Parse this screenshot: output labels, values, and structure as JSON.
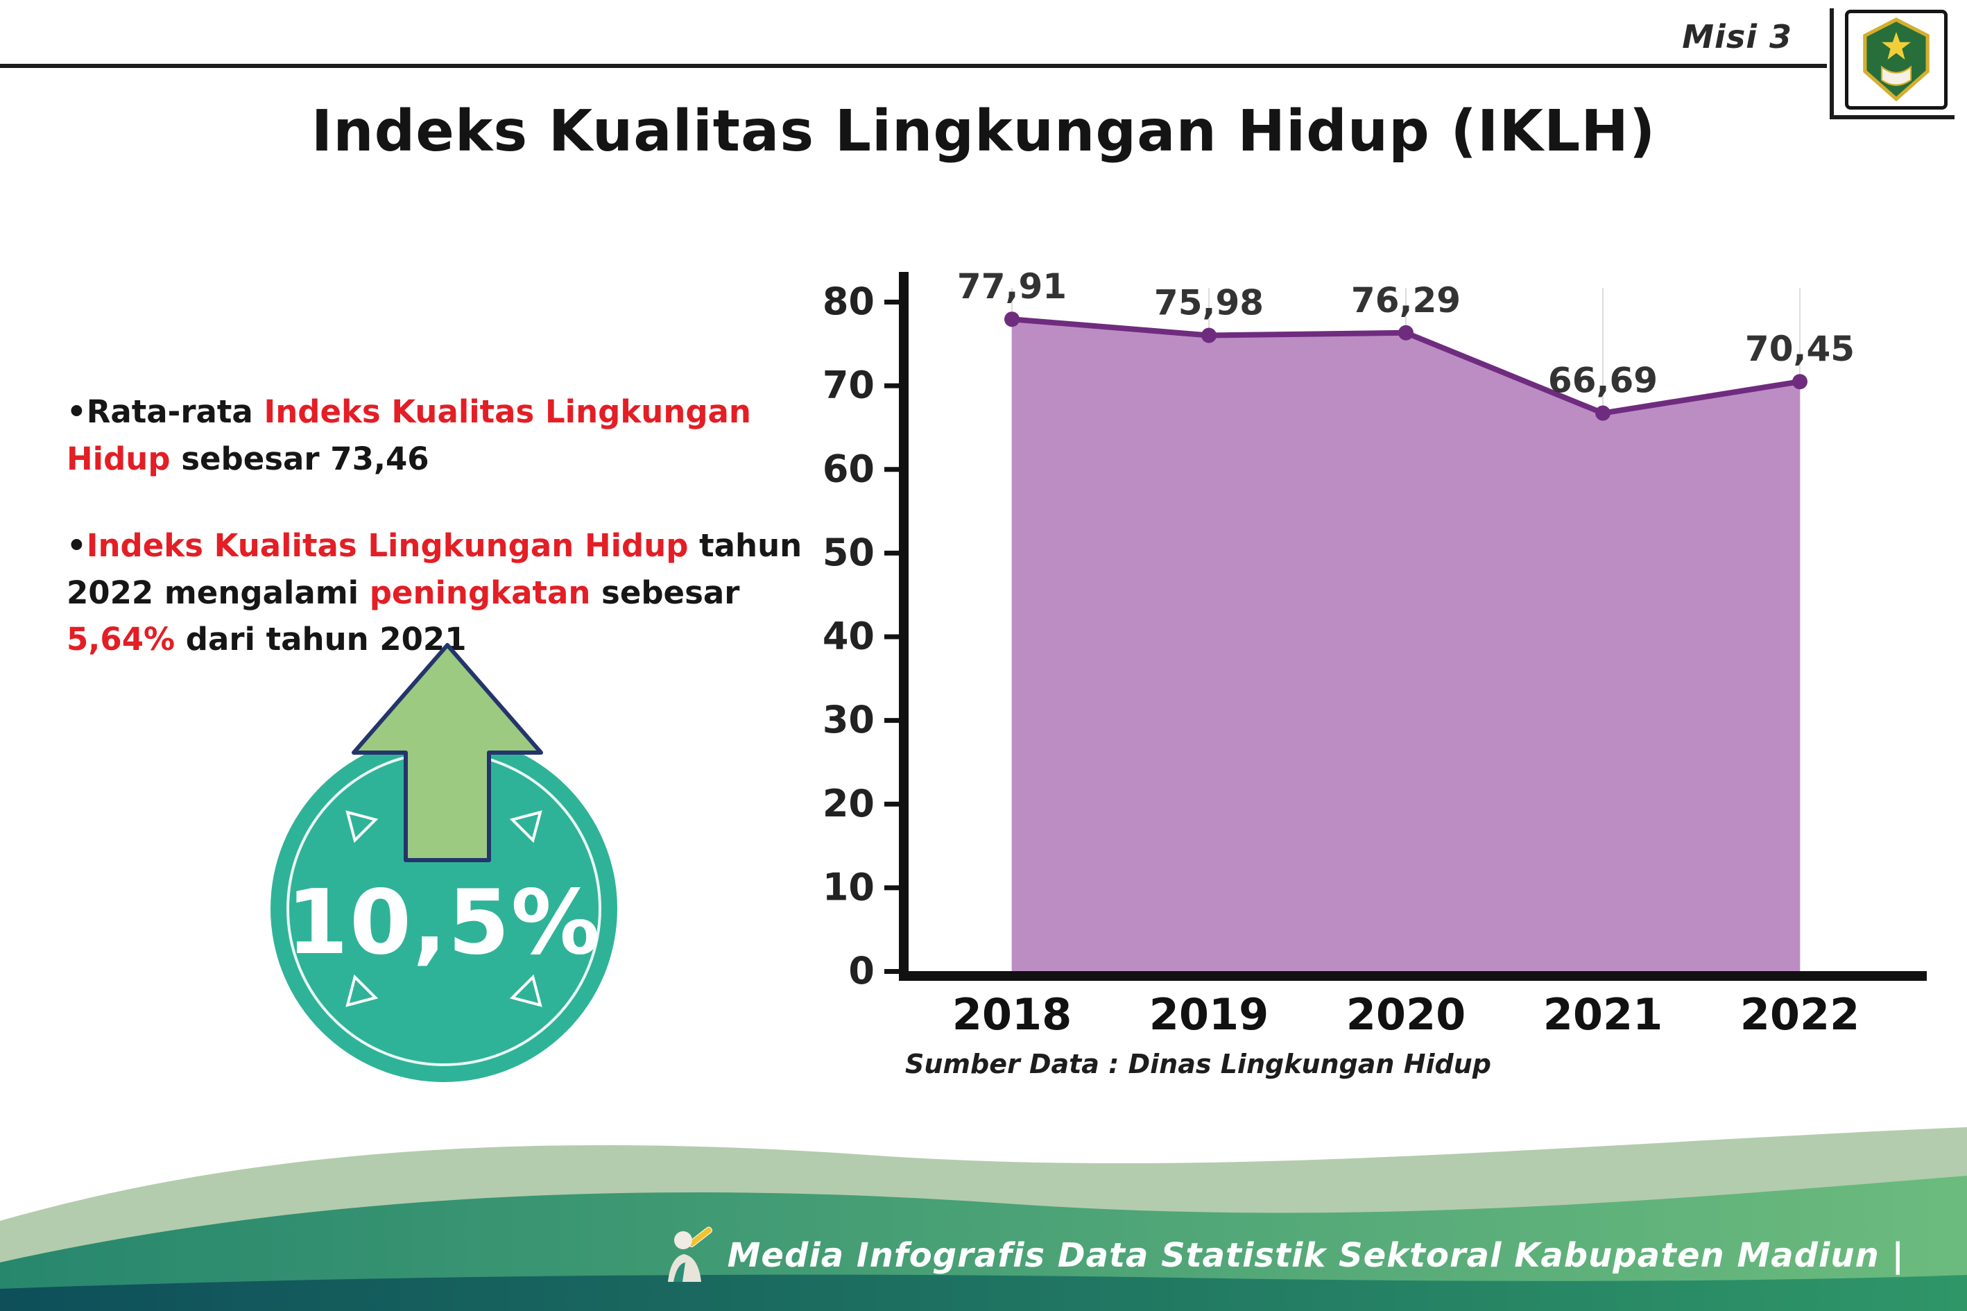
{
  "header": {
    "misi": "Misi 3",
    "title": "Indeks Kualitas Lingkungan Hidup (IKLH)"
  },
  "bullets": [
    {
      "marker": "•",
      "segments": [
        {
          "text": "Rata-rata ",
          "color": "black"
        },
        {
          "text": "Indeks Kualitas Lingkungan Hidup",
          "color": "red"
        },
        {
          "text": " sebesar 73,46",
          "color": "black"
        }
      ]
    },
    {
      "marker": "•",
      "segments": [
        {
          "text": "Indeks Kualitas Lingkungan Hidup",
          "color": "red"
        },
        {
          "text": " tahun 2022 mengalami ",
          "color": "black"
        },
        {
          "text": "peningkatan",
          "color": "red"
        },
        {
          "text": " sebesar ",
          "color": "black"
        },
        {
          "text": "5,64%",
          "color": "red"
        },
        {
          "text": " dari tahun 2021",
          "color": "black"
        }
      ]
    }
  ],
  "badge": {
    "value": "10,5%",
    "circle_color": "#2fb398",
    "arrow_color": "#9bca80",
    "arrow_outline": "#24356b"
  },
  "chart_data": {
    "type": "area",
    "categories": [
      "2018",
      "2019",
      "2020",
      "2021",
      "2022"
    ],
    "values": [
      77.91,
      75.98,
      76.29,
      66.69,
      70.45
    ],
    "labels": [
      "77,91",
      "75,98",
      "76,29",
      "66,69",
      "70,45"
    ],
    "title": "",
    "xlabel": "",
    "ylabel": "",
    "ylim": [
      0,
      80
    ],
    "yticks": [
      0,
      10,
      20,
      30,
      40,
      50,
      60,
      70,
      80
    ],
    "grid": true,
    "legend": "none",
    "area_color": "#bc8dc3",
    "line_color": "#6f2c7f",
    "source": "Sumber Data : Dinas Lingkungan Hidup"
  },
  "footer": {
    "caption": "Media Infografis Data Statistik Sektoral Kabupaten Madiun |"
  },
  "colors": {
    "accent_red": "#e31e25",
    "teal": "#2fb398",
    "arrow_green": "#9bca80"
  }
}
